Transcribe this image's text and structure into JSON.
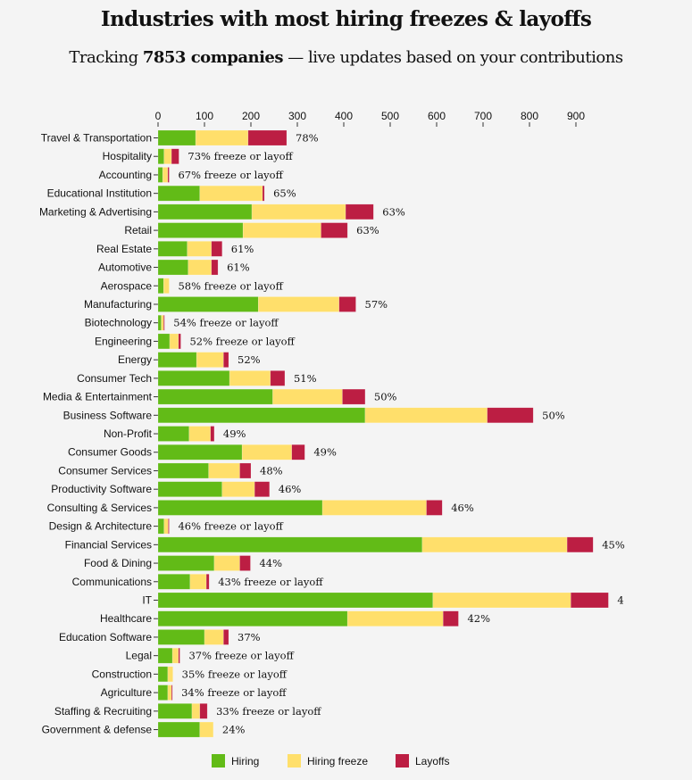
{
  "header": {
    "title": "Industries with most hiring freezes & layoffs",
    "subtitle_prefix": "Tracking ",
    "subtitle_bold": "7853 companies",
    "subtitle_suffix": " — live updates based on your contributions"
  },
  "colors": {
    "hiring": "#62bb17",
    "freeze": "#ffdf6b",
    "layoffs": "#bc1e43"
  },
  "legend": [
    {
      "key": "hiring",
      "label": "Hiring"
    },
    {
      "key": "freeze",
      "label": "Hiring freeze"
    },
    {
      "key": "layoffs",
      "label": "Layoffs"
    }
  ],
  "chart_data": {
    "type": "bar",
    "orientation": "horizontal",
    "stacked": true,
    "title": "Industries with most hiring freezes & layoffs",
    "xlabel": "",
    "ylabel": "",
    "xlim": [
      0,
      950
    ],
    "x_ticks": [
      0,
      100,
      200,
      300,
      400,
      500,
      600,
      700,
      800,
      900
    ],
    "x_axis_position": "top",
    "grid": false,
    "legend_position": "bottom",
    "categories": [
      "Travel & Transportation",
      "Hospitality",
      "Accounting",
      "Educational Institution",
      "Marketing & Advertising",
      "Retail",
      "Real Estate",
      "Automotive",
      "Aerospace",
      "Manufacturing",
      "Biotechnology",
      "Engineering",
      "Energy",
      "Consumer Tech",
      "Media & Entertainment",
      "Business Software",
      "Non-Profit",
      "Consumer Goods",
      "Consumer Services",
      "Productivity Software",
      "Consulting & Services",
      "Design & Architecture",
      "Financial Services",
      "Food & Dining",
      "Communications",
      "IT",
      "Healthcare",
      "Education Software",
      "Legal",
      "Construction",
      "Agriculture",
      "Staffing & Recruiting",
      "Government & defense"
    ],
    "series": [
      {
        "name": "Hiring",
        "key": "hiring",
        "values": [
          81,
          13,
          10,
          90,
          202,
          183,
          63,
          65,
          12,
          216,
          7,
          25,
          83,
          154,
          247,
          446,
          67,
          181,
          109,
          138,
          354,
          13,
          569,
          121,
          69,
          592,
          408,
          100,
          31,
          21,
          21,
          73,
          90
        ]
      },
      {
        "name": "Hiring freeze",
        "key": "freeze",
        "values": [
          113,
          16,
          11,
          135,
          202,
          168,
          52,
          50,
          12,
          174,
          5,
          19,
          58,
          88,
          150,
          263,
          46,
          107,
          67,
          70,
          224,
          9,
          312,
          55,
          35,
          297,
          206,
          41,
          13,
          11,
          8,
          17,
          29
        ]
      },
      {
        "name": "Layoffs",
        "key": "layoffs",
        "values": [
          83,
          16,
          3,
          4,
          60,
          57,
          23,
          14,
          0,
          36,
          2,
          5,
          11,
          31,
          49,
          99,
          8,
          28,
          24,
          32,
          34,
          2,
          56,
          23,
          6,
          81,
          33,
          11,
          3,
          0,
          2,
          16,
          0
        ]
      }
    ],
    "data_labels": [
      "78%",
      "73% freeze or layoff",
      "67% freeze or layoff",
      "65%",
      "63%",
      "63%",
      "61%",
      "61%",
      "58% freeze or layoff",
      "57%",
      "54% freeze or layoff",
      "52% freeze or layoff",
      "52%",
      "51%",
      "50%",
      "50%",
      "49%",
      "49%",
      "48%",
      "46%",
      "46%",
      "46% freeze or layoff",
      "45%",
      "44%",
      "43% freeze or layoff",
      "4",
      "42%",
      "37%",
      "37% freeze or layoff",
      "35% freeze or layoff",
      "34% freeze or layoff",
      "33% freeze or layoff",
      "24%"
    ]
  }
}
